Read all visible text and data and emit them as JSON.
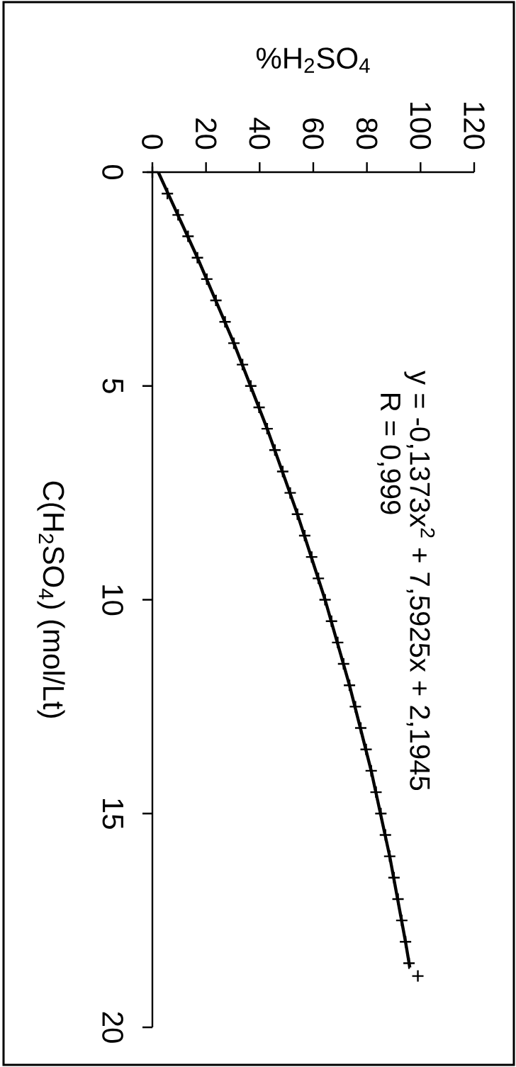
{
  "chart_data": {
    "type": "scatter",
    "xlabel": "%H$_{2}$SO$_{4}$",
    "ylabel": "C(H$_{2}$SO$_{4}$) (mol/Lt)",
    "xlim": [
      0,
      120
    ],
    "ylim": [
      20,
      0
    ],
    "xticks": [
      0,
      20,
      40,
      60,
      80,
      100,
      120
    ],
    "yticks": [
      0,
      5,
      10,
      15,
      20
    ],
    "annotations": [
      "y = -0,1373x$^{2}$ + 7,5925x + 2,1945",
      "R = 0,999"
    ],
    "series": [
      {
        "type": "line",
        "color": "#000000",
        "marker": "none",
        "x": [
          2.2,
          16.8,
          30.4,
          42.8,
          54.1,
          64.4,
          73.5,
          81.6,
          88.5,
          94.4,
          96.0
        ],
        "values": [
          0,
          2,
          4,
          6,
          8,
          10,
          12,
          14,
          16,
          18,
          18.6
        ]
      },
      {
        "color": "#000000",
        "marker": "cross",
        "x": [
          0,
          5.6,
          9.6,
          13.3,
          16.8,
          20.3,
          23.7,
          27.1,
          30.4,
          33.6,
          36.7,
          39.8,
          42.8,
          45.7,
          48.6,
          51.4,
          54.1,
          56.8,
          59.4,
          61.9,
          64.4,
          66.8,
          69.1,
          71.3,
          73.5,
          75.7,
          77.7,
          79.7,
          81.6,
          83.4,
          85.2,
          86.9,
          88.5,
          90.1,
          91.6,
          93.0,
          94.4,
          95.7,
          99
        ],
        "values": [
          0,
          0.5,
          1,
          1.5,
          2,
          2.5,
          3,
          3.5,
          4,
          4.5,
          5,
          5.5,
          6,
          6.5,
          7,
          7.5,
          8,
          8.5,
          9,
          9.5,
          10,
          10.5,
          11,
          11.5,
          12,
          12.5,
          13,
          13.5,
          14,
          14.5,
          15,
          15.5,
          16,
          16.5,
          17,
          17.5,
          18,
          18.5,
          18.8
        ]
      }
    ]
  }
}
